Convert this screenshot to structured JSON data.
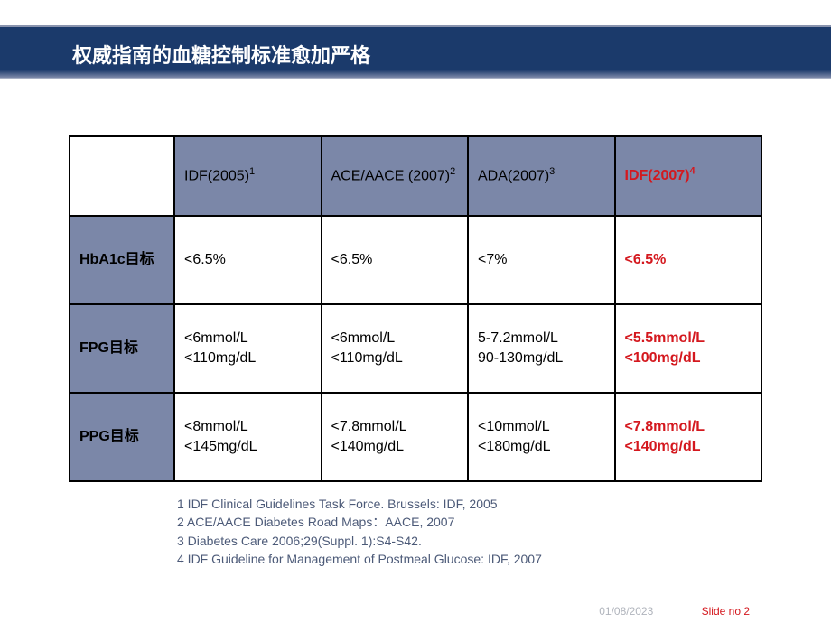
{
  "title": "权威指南的血糖控制标准愈加严格",
  "table": {
    "columns": [
      {
        "label": "",
        "sup": ""
      },
      {
        "label": "IDF(2005)",
        "sup": "1"
      },
      {
        "label": "ACE/AACE (2007)",
        "sup": "2"
      },
      {
        "label": "ADA(2007)",
        "sup": "3"
      },
      {
        "label": "IDF(2007)",
        "sup": "4",
        "highlight": true
      }
    ],
    "rows": [
      {
        "label": "HbA1c目标",
        "cells": [
          {
            "line1": "<6.5%",
            "line2": ""
          },
          {
            "line1": "<6.5%",
            "line2": ""
          },
          {
            "line1": "<7%",
            "line2": ""
          },
          {
            "line1": "<6.5%",
            "line2": "",
            "highlight": true
          }
        ]
      },
      {
        "label": "FPG目标",
        "cells": [
          {
            "line1": "<6mmol/L",
            "line2": "<110mg/dL"
          },
          {
            "line1": "<6mmol/L",
            "line2": "<110mg/dL"
          },
          {
            "line1": "5-7.2mmol/L",
            "line2": "90-130mg/dL"
          },
          {
            "line1": "<5.5mmol/L",
            "line2": "<100mg/dL",
            "highlight": true
          }
        ]
      },
      {
        "label": "PPG目标",
        "cells": [
          {
            "line1": "<8mmol/L",
            "line2": "<145mg/dL"
          },
          {
            "line1": "<7.8mmol/L",
            "line2": "<140mg/dL"
          },
          {
            "line1": "<10mmol/L",
            "line2": "<180mg/dL"
          },
          {
            "line1": "<7.8mmol/L",
            "line2": "<140mg/dL",
            "highlight": true
          }
        ]
      }
    ],
    "styling": {
      "header_bg": "#7b87a8",
      "rowlabel_bg": "#7b87a8",
      "cell_bg": "#ffffff",
      "border_color": "#000000",
      "highlight_color": "#d4181e",
      "text_color": "#000000",
      "font_size_pt": 12
    }
  },
  "references": {
    "r1": "1 IDF Clinical Guidelines Task Force. Brussels: IDF, 2005",
    "r2": "2 ACE/AACE Diabetes Road Maps：AACE, 2007",
    "r3": "3 Diabetes Care 2006;29(Suppl. 1):S4-S42.",
    "r4": "4 IDF Guideline for Management of Postmeal Glucose: IDF, 2007"
  },
  "footer": {
    "date": "01/08/2023",
    "slideno": "Slide no 2"
  },
  "colors": {
    "header_band": "#1b3a6b",
    "title_text": "#ffffff",
    "ref_text": "#4c5a78",
    "footer_date": "#b0b4bc",
    "footer_slide": "#d4181e"
  }
}
